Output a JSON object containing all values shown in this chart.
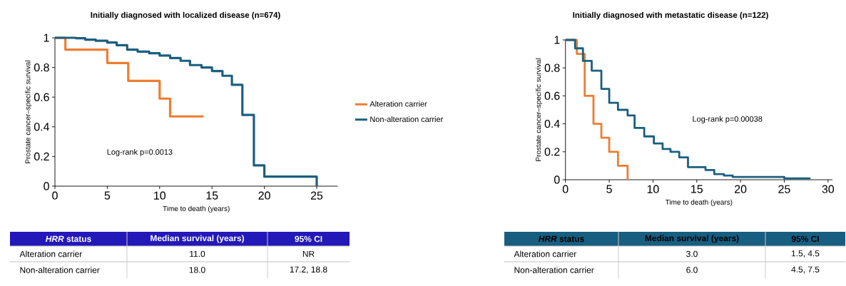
{
  "chart_data": [
    {
      "type": "step",
      "title": "Initially diagnosed with localized disease (n=674)",
      "xlabel": "Time to death (years)",
      "ylabel": "Prostate cancer–specific survival",
      "xlim": [
        0,
        27
      ],
      "ylim": [
        0,
        1
      ],
      "xticks": [
        0,
        5,
        10,
        15,
        20,
        25
      ],
      "yticks": [
        0,
        0.2,
        0.4,
        0.6,
        0.8,
        1
      ],
      "legend": "right",
      "series": [
        {
          "name": "Alteration carrier",
          "color": "#ed7d31",
          "x": [
            0,
            1,
            5,
            7,
            10,
            11,
            14.2
          ],
          "values": [
            1,
            0.92,
            0.83,
            0.71,
            0.59,
            0.47,
            0.47
          ]
        },
        {
          "name": "Non-alteration carrier",
          "color": "#1a5f7f",
          "x": [
            0,
            2,
            2.9,
            3.9,
            5,
            5.9,
            6.9,
            7.9,
            9,
            10,
            11,
            12,
            12.9,
            14,
            15,
            16,
            16.9,
            17.9,
            19,
            20,
            25
          ],
          "values": [
            1,
            0.997,
            0.987,
            0.98,
            0.968,
            0.95,
            0.92,
            0.907,
            0.896,
            0.88,
            0.864,
            0.845,
            0.816,
            0.8,
            0.776,
            0.744,
            0.683,
            0.48,
            0.14,
            0.064,
            0
          ]
        }
      ],
      "annotations": [
        "Log-rank p=0.0013",
        "*HRR* status",
        "Median survival (years)",
        "95% CI",
        "Alteration carrier",
        "11.0",
        "NR",
        "Non-alteration carrier",
        "18.0",
        "17.2, 18.8"
      ]
    },
    {
      "type": "step",
      "title": "Initially diagnosed with metastatic disease (n=122)",
      "xlabel": "Time to death (years)",
      "ylabel": "Prostate cancer–specific survival",
      "xlim": [
        0,
        30.5
      ],
      "ylim": [
        0,
        1
      ],
      "xticks": [
        0,
        5,
        10,
        15,
        20,
        25,
        30
      ],
      "yticks": [
        0,
        0.2,
        0.4,
        0.6,
        0.8,
        1
      ],
      "series": [
        {
          "color": "#ed7d31",
          "x": [
            0,
            1.3,
            2.2,
            3.2,
            4.1,
            5,
            6,
            7.1
          ],
          "values": [
            1,
            0.9,
            0.6,
            0.4,
            0.3,
            0.2,
            0.1,
            0
          ]
        },
        {
          "color": "#1a5f7f",
          "x": [
            0,
            1.1,
            2,
            3,
            4.1,
            5,
            6,
            7.1,
            7.9,
            9,
            10.1,
            11.1,
            12,
            13,
            14,
            16,
            17,
            18.1,
            19.1,
            25,
            28
          ],
          "values": [
            1,
            0.94,
            0.85,
            0.78,
            0.65,
            0.55,
            0.5,
            0.46,
            0.37,
            0.31,
            0.26,
            0.22,
            0.2,
            0.16,
            0.09,
            0.07,
            0.04,
            0.03,
            0.02,
            0.01,
            0.01
          ]
        }
      ],
      "annotations": [
        "Log-rank p=0.00038",
        "*HRR* status",
        "Median survival (years)",
        "95% CI",
        "Alteration carrier",
        "3.0",
        "1.5, 4.5",
        "Non-alteration carrier",
        "6.0",
        "4.5, 7.5"
      ]
    }
  ]
}
